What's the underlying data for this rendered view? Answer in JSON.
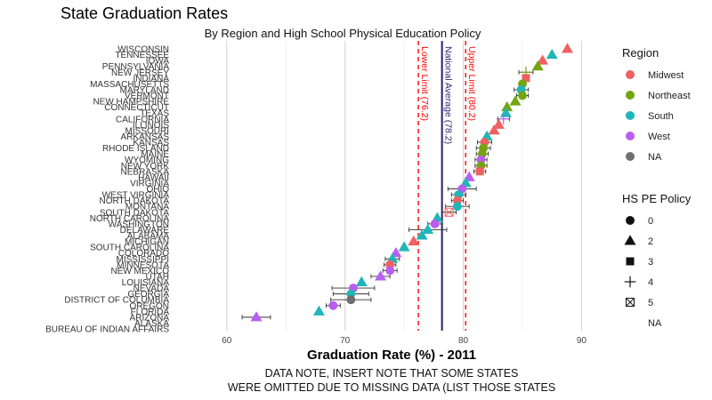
{
  "chart_data": {
    "type": "scatter",
    "title": "State Graduation Rates",
    "subtitle": "By Region and High School Physical Education Policy",
    "xlabel": "Graduation Rate (%) - 2011",
    "ylabel": "",
    "xlim": [
      55.5,
      92
    ],
    "xticks": [
      60,
      70,
      80,
      90
    ],
    "grid": true,
    "notes": [
      "DATA NOTE, INSERT NOTE THAT SOME STATES",
      "WERE OMITTED DUE TO MISSING DATA (LIST THOSE STATES"
    ],
    "reference_lines": [
      {
        "label": "Lower Limit (76.2)",
        "value": 76.2,
        "color": "#ff0000",
        "style": "dashed"
      },
      {
        "label": "National Average (78.2)",
        "value": 78.2,
        "color": "#2a1f6e",
        "style": "solid"
      },
      {
        "label": "Upper Limit (80.2)",
        "value": 80.2,
        "color": "#ff0000",
        "style": "dashed"
      }
    ],
    "legends": [
      {
        "title": "Region",
        "items": [
          {
            "label": "Midwest",
            "color": "#f06060",
            "shape": "circle"
          },
          {
            "label": "Northeast",
            "color": "#74a511",
            "shape": "circle"
          },
          {
            "label": "South",
            "color": "#1fb6b8",
            "shape": "circle"
          },
          {
            "label": "West",
            "color": "#b95ef2",
            "shape": "circle"
          },
          {
            "label": "NA",
            "color": "#6f6f6f",
            "shape": "circle"
          }
        ]
      },
      {
        "title": "HS PE Policy",
        "items": [
          {
            "label": "0",
            "shape": "circle"
          },
          {
            "label": "2",
            "shape": "triangle"
          },
          {
            "label": "3",
            "shape": "square"
          },
          {
            "label": "4",
            "shape": "plus"
          },
          {
            "label": "5",
            "shape": "boxx"
          },
          {
            "label": "NA",
            "shape": "none"
          }
        ]
      }
    ],
    "points": [
      {
        "state": "WISCONSIN",
        "rate": 88.8,
        "region": "Midwest",
        "policy": "2",
        "err": 0
      },
      {
        "state": "TENNESSEE",
        "rate": 87.5,
        "region": "South",
        "policy": "2",
        "err": 0
      },
      {
        "state": "IOWA",
        "rate": 86.7,
        "region": "Midwest",
        "policy": "2",
        "err": 0
      },
      {
        "state": "PENNSYLVANIA",
        "rate": 86.3,
        "region": "Northeast",
        "policy": "2",
        "err": 0
      },
      {
        "state": "NEW JERSEY",
        "rate": 85.3,
        "region": "Northeast",
        "policy": "4",
        "err": 0.6
      },
      {
        "state": "INDIANA",
        "rate": 85.3,
        "region": "Midwest",
        "policy": "3",
        "err": 0
      },
      {
        "state": "MASSACHUSETTS",
        "rate": 85.0,
        "region": "Northeast",
        "policy": "0",
        "err": 0
      },
      {
        "state": "MARYLAND",
        "rate": 84.9,
        "region": "South",
        "policy": "0",
        "err": 0.6
      },
      {
        "state": "VERMONT",
        "rate": 85.0,
        "region": "Northeast",
        "policy": "0",
        "err": 0.5
      },
      {
        "state": "NEW HAMPSHIRE",
        "rate": 84.4,
        "region": "Northeast",
        "policy": "2",
        "err": 0
      },
      {
        "state": "CONNECTICUT",
        "rate": 83.7,
        "region": "Northeast",
        "policy": "2",
        "err": 0
      },
      {
        "state": "TEXAS",
        "rate": 83.6,
        "region": "South",
        "policy": "2",
        "err": 0
      },
      {
        "state": "CALIFORNIA",
        "rate": 83.4,
        "region": "West",
        "policy": "4",
        "err": 0.5
      },
      {
        "state": "ILLINOIS",
        "rate": 83.0,
        "region": "Midwest",
        "policy": "2",
        "err": 0
      },
      {
        "state": "MISSOURI",
        "rate": 82.6,
        "region": "Midwest",
        "policy": "2",
        "err": 0
      },
      {
        "state": "ARKANSAS",
        "rate": 82.0,
        "region": "South",
        "policy": "2",
        "err": 0
      },
      {
        "state": "KANSAS",
        "rate": 81.8,
        "region": "Midwest",
        "policy": "0",
        "err": 0.6
      },
      {
        "state": "RHODE ISLAND",
        "rate": 81.7,
        "region": "Northeast",
        "policy": "0",
        "err": 0.6
      },
      {
        "state": "MAINE",
        "rate": 81.6,
        "region": "Northeast",
        "policy": "0",
        "err": 0.5
      },
      {
        "state": "WYOMING",
        "rate": 81.5,
        "region": "West",
        "policy": "0",
        "err": 0.5
      },
      {
        "state": "NEW YORK",
        "rate": 81.5,
        "region": "Northeast",
        "policy": "0",
        "err": 0.5
      },
      {
        "state": "NEBRASKA",
        "rate": 81.4,
        "region": "Midwest",
        "policy": "3",
        "err": 0.5
      },
      {
        "state": "HAWAII",
        "rate": 80.5,
        "region": "West",
        "policy": "2",
        "err": 0
      },
      {
        "state": "VIRGINIA",
        "rate": 80.2,
        "region": "South",
        "policy": "2",
        "err": 0
      },
      {
        "state": "OHIO",
        "rate": 79.9,
        "region": "West",
        "policy": "0",
        "err": 1.2
      },
      {
        "state": "WEST VIRGINIA",
        "rate": 79.6,
        "region": "South",
        "policy": "0",
        "err": 0.6
      },
      {
        "state": "NORTH DAKOTA",
        "rate": 79.5,
        "region": "Midwest",
        "policy": "0",
        "err": 0.5
      },
      {
        "state": "MONTANA",
        "rate": 79.5,
        "region": "South",
        "policy": "0",
        "err": 1.0
      },
      {
        "state": "SOUTH DAKOTA",
        "rate": 78.8,
        "region": "Midwest",
        "policy": "5",
        "err": 0.6
      },
      {
        "state": "NORTH CAROLINA",
        "rate": 77.8,
        "region": "South",
        "policy": "2",
        "err": 0
      },
      {
        "state": "WASHINGTON",
        "rate": 77.6,
        "region": "West",
        "policy": "0",
        "err": 0.6
      },
      {
        "state": "DELAWARE",
        "rate": 77.0,
        "region": "South",
        "policy": "2",
        "err": 1.6
      },
      {
        "state": "ALABAMA",
        "rate": 76.5,
        "region": "South",
        "policy": "2",
        "err": 0
      },
      {
        "state": "MICHIGAN",
        "rate": 75.8,
        "region": "Midwest",
        "policy": "2",
        "err": 0
      },
      {
        "state": "SOUTH CAROLINA",
        "rate": 75.0,
        "region": "South",
        "policy": "2",
        "err": 0
      },
      {
        "state": "COLORADO",
        "rate": 74.3,
        "region": "West",
        "policy": "2",
        "err": 0
      },
      {
        "state": "MISSISSIPPI",
        "rate": 74.0,
        "region": "South",
        "policy": "2",
        "err": 0.6
      },
      {
        "state": "MINNESOTA",
        "rate": 73.8,
        "region": "Midwest",
        "policy": "0",
        "err": 0.5
      },
      {
        "state": "NEW MEXICO",
        "rate": 73.8,
        "region": "West",
        "policy": "0",
        "err": 0.6
      },
      {
        "state": "UTAH",
        "rate": 73.0,
        "region": "West",
        "policy": "2",
        "err": 0.8
      },
      {
        "state": "LOUISIANA",
        "rate": 71.4,
        "region": "South",
        "policy": "2",
        "err": 0
      },
      {
        "state": "NEVADA",
        "rate": 70.7,
        "region": "West",
        "policy": "0",
        "err": 1.8
      },
      {
        "state": "GEORGIA",
        "rate": 70.5,
        "region": "South",
        "policy": "0",
        "err": 1.5
      },
      {
        "state": "DISTRICT OF COLUMBIA",
        "rate": 70.5,
        "region": "NA",
        "policy": "0",
        "err": 1.7
      },
      {
        "state": "OREGON",
        "rate": 69.0,
        "region": "West",
        "policy": "0",
        "err": 0.6
      },
      {
        "state": "FLORIDA",
        "rate": 67.8,
        "region": "South",
        "policy": "2",
        "err": 0
      },
      {
        "state": "ARIZONA",
        "rate": 62.5,
        "region": "West",
        "policy": "2",
        "err": 1.2
      },
      {
        "state": "ALASKA",
        "rate": null,
        "region": "NA",
        "policy": "NA",
        "err": 0
      },
      {
        "state": "BUREAU OF INDIAN AFFAIRS",
        "rate": null,
        "region": "NA",
        "policy": "NA",
        "err": 0
      }
    ]
  }
}
